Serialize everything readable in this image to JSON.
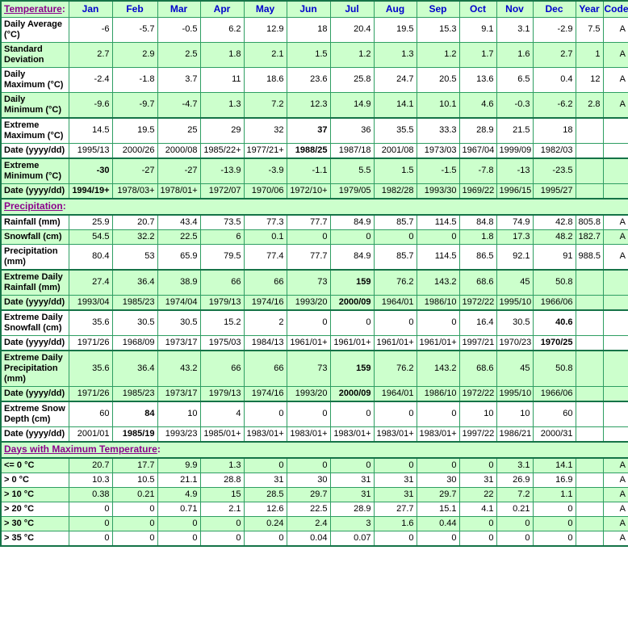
{
  "colors": {
    "green-bg": "#CCFFCC",
    "border-green": "#2E9E62",
    "border-dark": "#157347",
    "label-blue": "#0000CC",
    "link-purple": "#8B008B"
  },
  "table": {
    "columns": [
      "Jan",
      "Feb",
      "Mar",
      "Apr",
      "May",
      "Jun",
      "Jul",
      "Aug",
      "Sep",
      "Oct",
      "Nov",
      "Dec",
      "Year",
      "Code"
    ],
    "sections": [
      {
        "title": "Temperature:",
        "rows": [
          {
            "label": "Daily Average (°C)",
            "shade": "white",
            "bold": [],
            "values": [
              "-6",
              "-5.7",
              "-0.5",
              "6.2",
              "12.9",
              "18",
              "20.4",
              "19.5",
              "15.3",
              "9.1",
              "3.1",
              "-2.9",
              "7.5",
              "A"
            ]
          },
          {
            "label": "Standard Deviation",
            "shade": "green",
            "bold": [],
            "values": [
              "2.7",
              "2.9",
              "2.5",
              "1.8",
              "2.1",
              "1.5",
              "1.2",
              "1.3",
              "1.2",
              "1.7",
              "1.6",
              "2.7",
              "1",
              "A"
            ]
          },
          {
            "label": "Daily Maximum (°C)",
            "shade": "white",
            "bold": [],
            "values": [
              "-2.4",
              "-1.8",
              "3.7",
              "11",
              "18.6",
              "23.6",
              "25.8",
              "24.7",
              "20.5",
              "13.6",
              "6.5",
              "0.4",
              "12",
              "A"
            ]
          },
          {
            "label": "Daily Minimum (°C)",
            "shade": "green",
            "bold": [],
            "values": [
              "-9.6",
              "-9.7",
              "-4.7",
              "1.3",
              "7.2",
              "12.3",
              "14.9",
              "14.1",
              "10.1",
              "4.6",
              "-0.3",
              "-6.2",
              "2.8",
              "A"
            ]
          },
          {
            "label": "Extreme Maximum (°C)",
            "shade": "white",
            "bold": [
              5
            ],
            "group": true,
            "values": [
              "14.5",
              "19.5",
              "25",
              "29",
              "32",
              "37",
              "36",
              "35.5",
              "33.3",
              "28.9",
              "21.5",
              "18",
              "",
              ""
            ]
          },
          {
            "label": "Date (yyyy/dd)",
            "shade": "white",
            "bold": [
              5
            ],
            "values": [
              "1995/13",
              "2000/26",
              "2000/08",
              "1985/22+",
              "1977/21+",
              "1988/25",
              "1987/18",
              "2001/08",
              "1973/03",
              "1967/04",
              "1999/09",
              "1982/03",
              "",
              ""
            ]
          },
          {
            "label": "Extreme Minimum (°C)",
            "shade": "green",
            "bold": [
              0
            ],
            "group": true,
            "values": [
              "-30",
              "-27",
              "-27",
              "-13.9",
              "-3.9",
              "-1.1",
              "5.5",
              "1.5",
              "-1.5",
              "-7.8",
              "-13",
              "-23.5",
              "",
              ""
            ]
          },
          {
            "label": "Date (yyyy/dd)",
            "shade": "green",
            "bold": [
              0
            ],
            "values": [
              "1994/19+",
              "1978/03+",
              "1978/01+",
              "1972/07",
              "1970/06",
              "1972/10+",
              "1979/05",
              "1982/28",
              "1993/30",
              "1969/22",
              "1996/15",
              "1995/27",
              "",
              ""
            ]
          }
        ]
      },
      {
        "title": "Precipitation:",
        "rows": [
          {
            "label": "Rainfall (mm)",
            "shade": "white",
            "bold": [],
            "values": [
              "25.9",
              "20.7",
              "43.4",
              "73.5",
              "77.3",
              "77.7",
              "84.9",
              "85.7",
              "114.5",
              "84.8",
              "74.9",
              "42.8",
              "805.8",
              "A"
            ]
          },
          {
            "label": "Snowfall (cm)",
            "shade": "green",
            "bold": [],
            "values": [
              "54.5",
              "32.2",
              "22.5",
              "6",
              "0.1",
              "0",
              "0",
              "0",
              "0",
              "1.8",
              "17.3",
              "48.2",
              "182.7",
              "A"
            ]
          },
          {
            "label": "Precipitation (mm)",
            "shade": "white",
            "bold": [],
            "values": [
              "80.4",
              "53",
              "65.9",
              "79.5",
              "77.4",
              "77.7",
              "84.9",
              "85.7",
              "114.5",
              "86.5",
              "92.1",
              "91",
              "988.5",
              "A"
            ]
          },
          {
            "label": "Extreme Daily Rainfall (mm)",
            "shade": "green",
            "bold": [
              6
            ],
            "group": true,
            "values": [
              "27.4",
              "36.4",
              "38.9",
              "66",
              "66",
              "73",
              "159",
              "76.2",
              "143.2",
              "68.6",
              "45",
              "50.8",
              "",
              ""
            ]
          },
          {
            "label": "Date (yyyy/dd)",
            "shade": "green",
            "bold": [
              6
            ],
            "values": [
              "1993/04",
              "1985/23",
              "1974/04",
              "1979/13",
              "1974/16",
              "1993/20",
              "2000/09",
              "1964/01",
              "1986/10",
              "1972/22",
              "1995/10",
              "1966/06",
              "",
              ""
            ]
          },
          {
            "label": "Extreme Daily Snowfall (cm)",
            "shade": "white",
            "bold": [
              11
            ],
            "group": true,
            "values": [
              "35.6",
              "30.5",
              "30.5",
              "15.2",
              "2",
              "0",
              "0",
              "0",
              "0",
              "16.4",
              "30.5",
              "40.6",
              "",
              ""
            ]
          },
          {
            "label": "Date (yyyy/dd)",
            "shade": "white",
            "bold": [
              11
            ],
            "values": [
              "1971/26",
              "1968/09",
              "1973/17",
              "1975/03",
              "1984/13",
              "1961/01+",
              "1961/01+",
              "1961/01+",
              "1961/01+",
              "1997/21",
              "1970/23",
              "1970/25",
              "",
              ""
            ]
          },
          {
            "label": "Extreme Daily Precipitation (mm)",
            "shade": "green",
            "bold": [
              6
            ],
            "group": true,
            "values": [
              "35.6",
              "36.4",
              "43.2",
              "66",
              "66",
              "73",
              "159",
              "76.2",
              "143.2",
              "68.6",
              "45",
              "50.8",
              "",
              ""
            ]
          },
          {
            "label": "Date (yyyy/dd)",
            "shade": "green",
            "bold": [
              6
            ],
            "values": [
              "1971/26",
              "1985/23",
              "1973/17",
              "1979/13",
              "1974/16",
              "1993/20",
              "2000/09",
              "1964/01",
              "1986/10",
              "1972/22",
              "1995/10",
              "1966/06",
              "",
              ""
            ]
          },
          {
            "label": "Extreme Snow Depth (cm)",
            "shade": "white",
            "bold": [
              1
            ],
            "group": true,
            "values": [
              "60",
              "84",
              "10",
              "4",
              "0",
              "0",
              "0",
              "0",
              "0",
              "10",
              "10",
              "60",
              "",
              ""
            ]
          },
          {
            "label": "Date (yyyy/dd)",
            "shade": "white",
            "bold": [
              1
            ],
            "values": [
              "2001/01",
              "1985/19",
              "1993/23",
              "1985/01+",
              "1983/01+",
              "1983/01+",
              "1983/01+",
              "1983/01+",
              "1983/01+",
              "1997/22",
              "1986/21",
              "2000/31",
              "",
              ""
            ]
          }
        ]
      },
      {
        "title": "Days with Maximum Temperature:",
        "rows": [
          {
            "label": "<= 0 °C",
            "shade": "green",
            "bold": [],
            "values": [
              "20.7",
              "17.7",
              "9.9",
              "1.3",
              "0",
              "0",
              "0",
              "0",
              "0",
              "0",
              "3.1",
              "14.1",
              "",
              "A"
            ]
          },
          {
            "label": "> 0 °C",
            "shade": "white",
            "bold": [],
            "values": [
              "10.3",
              "10.5",
              "21.1",
              "28.8",
              "31",
              "30",
              "31",
              "31",
              "30",
              "31",
              "26.9",
              "16.9",
              "",
              "A"
            ]
          },
          {
            "label": "> 10 °C",
            "shade": "green",
            "bold": [],
            "values": [
              "0.38",
              "0.21",
              "4.9",
              "15",
              "28.5",
              "29.7",
              "31",
              "31",
              "29.7",
              "22",
              "7.2",
              "1.1",
              "",
              "A"
            ]
          },
          {
            "label": "> 20 °C",
            "shade": "white",
            "bold": [],
            "values": [
              "0",
              "0",
              "0.71",
              "2.1",
              "12.6",
              "22.5",
              "28.9",
              "27.7",
              "15.1",
              "4.1",
              "0.21",
              "0",
              "",
              "A"
            ]
          },
          {
            "label": "> 30 °C",
            "shade": "green",
            "bold": [],
            "values": [
              "0",
              "0",
              "0",
              "0",
              "0.24",
              "2.4",
              "3",
              "1.6",
              "0.44",
              "0",
              "0",
              "0",
              "",
              "A"
            ]
          },
          {
            "label": "> 35 °C",
            "shade": "white",
            "bold": [],
            "values": [
              "0",
              "0",
              "0",
              "0",
              "0",
              "0.04",
              "0.07",
              "0",
              "0",
              "0",
              "0",
              "0",
              "",
              "A"
            ]
          }
        ]
      }
    ]
  }
}
